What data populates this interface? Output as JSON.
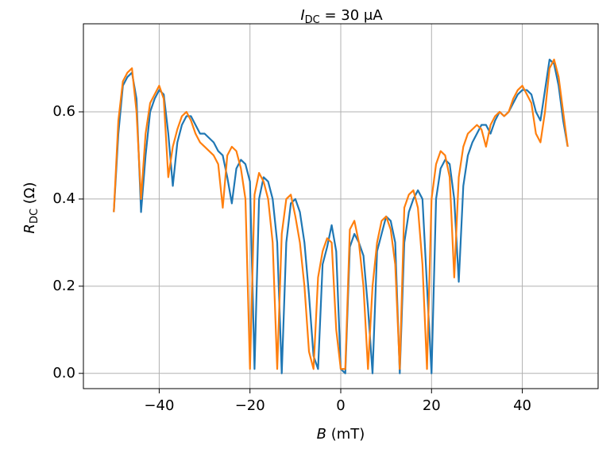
{
  "chart_data": {
    "type": "line",
    "title": [
      "I",
      "DC",
      " = 30 μA"
    ],
    "xlabel": [
      "B",
      " (mT)"
    ],
    "ylabel": [
      "R",
      "DC",
      " (Ω)"
    ],
    "x": [
      -50,
      -49,
      -48,
      -47,
      -46,
      -45,
      -44,
      -43,
      -42,
      -41,
      -40,
      -39,
      -38,
      -37,
      -36,
      -35,
      -34,
      -33,
      -32,
      -31,
      -30,
      -29,
      -28,
      -27,
      -26,
      -25,
      -24,
      -23,
      -22,
      -21,
      -20,
      -19,
      -18,
      -17,
      -16,
      -15,
      -14,
      -13,
      -12,
      -11,
      -10,
      -9,
      -8,
      -7,
      -6,
      -5,
      -4,
      -3,
      -2,
      -1,
      0,
      1,
      2,
      3,
      4,
      5,
      6,
      7,
      8,
      9,
      10,
      11,
      12,
      13,
      14,
      15,
      16,
      17,
      18,
      19,
      20,
      21,
      22,
      23,
      24,
      25,
      26,
      27,
      28,
      29,
      30,
      31,
      32,
      33,
      34,
      35,
      36,
      37,
      38,
      39,
      40,
      41,
      42,
      43,
      44,
      45,
      46,
      47,
      48,
      49,
      50
    ],
    "series": [
      {
        "color": "#1f77b4",
        "values": [
          0.37,
          0.55,
          0.66,
          0.68,
          0.69,
          0.63,
          0.37,
          0.5,
          0.6,
          0.63,
          0.65,
          0.64,
          0.55,
          0.43,
          0.53,
          0.57,
          0.59,
          0.59,
          0.57,
          0.55,
          0.55,
          0.54,
          0.53,
          0.51,
          0.5,
          0.45,
          0.39,
          0.47,
          0.49,
          0.48,
          0.44,
          0.01,
          0.4,
          0.45,
          0.44,
          0.4,
          0.3,
          0.0,
          0.3,
          0.39,
          0.4,
          0.37,
          0.3,
          0.18,
          0.04,
          0.01,
          0.25,
          0.29,
          0.34,
          0.28,
          0.01,
          0.0,
          0.29,
          0.32,
          0.3,
          0.27,
          0.15,
          0.0,
          0.28,
          0.32,
          0.36,
          0.35,
          0.3,
          0.0,
          0.3,
          0.37,
          0.4,
          0.42,
          0.4,
          0.2,
          0.0,
          0.4,
          0.47,
          0.49,
          0.48,
          0.4,
          0.21,
          0.43,
          0.5,
          0.53,
          0.55,
          0.57,
          0.57,
          0.55,
          0.58,
          0.6,
          0.59,
          0.6,
          0.62,
          0.64,
          0.65,
          0.65,
          0.64,
          0.6,
          0.58,
          0.65,
          0.72,
          0.71,
          0.66,
          0.58,
          0.52
        ]
      },
      {
        "color": "#ff7f0e",
        "values": [
          0.37,
          0.58,
          0.67,
          0.69,
          0.7,
          0.6,
          0.4,
          0.55,
          0.62,
          0.64,
          0.66,
          0.63,
          0.45,
          0.52,
          0.56,
          0.59,
          0.6,
          0.58,
          0.55,
          0.53,
          0.52,
          0.51,
          0.5,
          0.48,
          0.38,
          0.5,
          0.52,
          0.51,
          0.47,
          0.4,
          0.01,
          0.41,
          0.46,
          0.44,
          0.4,
          0.3,
          0.01,
          0.32,
          0.4,
          0.41,
          0.36,
          0.3,
          0.2,
          0.05,
          0.01,
          0.22,
          0.28,
          0.31,
          0.3,
          0.1,
          0.01,
          0.01,
          0.33,
          0.35,
          0.3,
          0.2,
          0.01,
          0.2,
          0.3,
          0.35,
          0.36,
          0.33,
          0.25,
          0.01,
          0.38,
          0.41,
          0.42,
          0.38,
          0.25,
          0.01,
          0.4,
          0.48,
          0.51,
          0.5,
          0.45,
          0.22,
          0.45,
          0.52,
          0.55,
          0.56,
          0.57,
          0.56,
          0.52,
          0.57,
          0.59,
          0.6,
          0.59,
          0.6,
          0.63,
          0.65,
          0.66,
          0.64,
          0.62,
          0.55,
          0.53,
          0.6,
          0.7,
          0.72,
          0.68,
          0.6,
          0.52
        ]
      }
    ],
    "xlim": [
      -56.7,
      56.7
    ],
    "ylim": [
      -0.035,
      0.802
    ],
    "xticks": [
      {
        "value": -40,
        "label": "−40"
      },
      {
        "value": -20,
        "label": "−20"
      },
      0,
      20,
      40
    ],
    "yticks": [
      {
        "value": 0,
        "label": "0.0"
      },
      0.2,
      0.4,
      0.6
    ],
    "grid": true
  }
}
